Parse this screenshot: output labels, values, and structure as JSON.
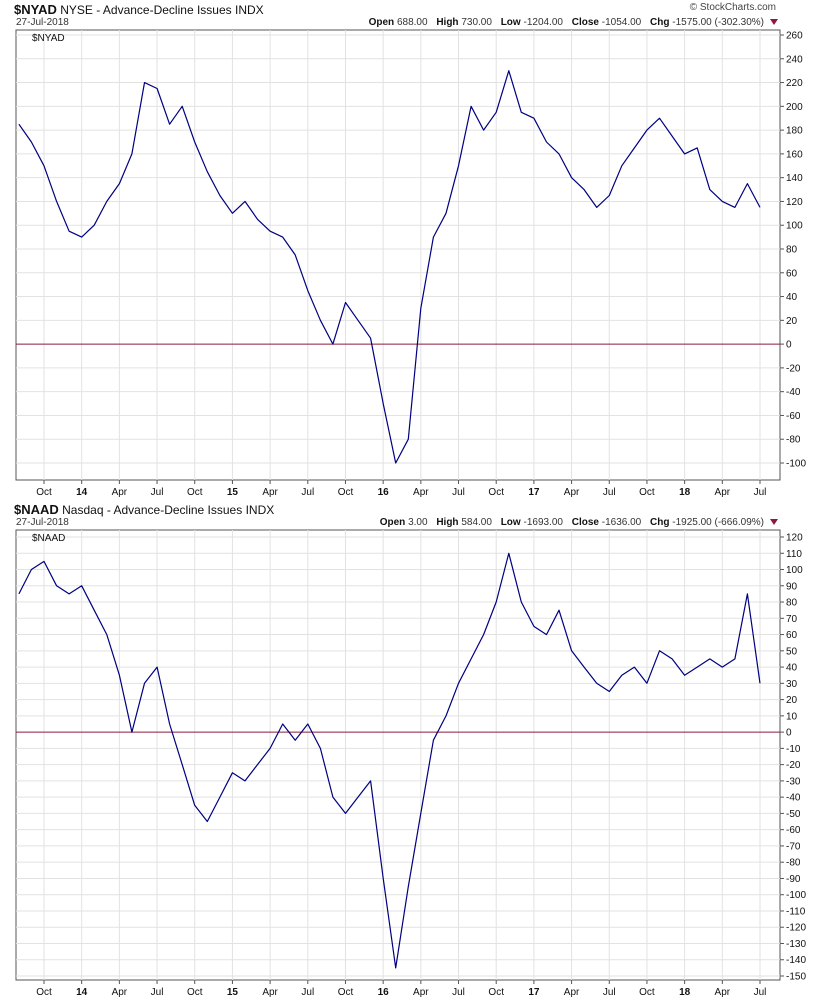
{
  "brand": "© StockCharts.com",
  "x_labels": [
    "Oct",
    "14",
    "Apr",
    "Jul",
    "Oct",
    "15",
    "Apr",
    "Jul",
    "Oct",
    "16",
    "Apr",
    "Jul",
    "Oct",
    "17",
    "Apr",
    "Jul",
    "Oct",
    "18",
    "Apr",
    "Jul"
  ],
  "panels": [
    {
      "symbol": "$NYAD",
      "name": "NYSE - Advance-Decline Issues",
      "exchange": "INDX",
      "date": "27-Jul-2018",
      "open_label": "Open",
      "open": "688.00",
      "high_label": "High",
      "high": "730.00",
      "low_label": "Low",
      "low": "-1204.00",
      "close_label": "Close",
      "close": "-1054.00",
      "chg_label": "Chg",
      "chg": "-1575.00 (-302.30%)",
      "plot_label": "$NYAD"
    },
    {
      "symbol": "$NAAD",
      "name": "Nasdaq - Advance-Decline Issues",
      "exchange": "INDX",
      "date": "27-Jul-2018",
      "open_label": "Open",
      "open": "3.00",
      "high_label": "High",
      "high": "584.00",
      "low_label": "Low",
      "low": "-1693.00",
      "close_label": "Close",
      "close": "-1636.00",
      "chg_label": "Chg",
      "chg": "-1925.00 (-666.09%)",
      "plot_label": "$NAAD"
    }
  ],
  "chart_data": [
    {
      "type": "line",
      "title": "$NYAD",
      "x_range": [
        "2013-08",
        "2018-07-27"
      ],
      "ylim": [
        -110,
        262
      ],
      "yticks": [
        260,
        240,
        220,
        200,
        180,
        160,
        140,
        120,
        100,
        80,
        60,
        40,
        20,
        0,
        -20,
        -40,
        -60,
        -80,
        -100
      ],
      "zero_line": true,
      "line_color": "#000080",
      "zero_line_color": "#8b1a3a",
      "grid": true,
      "x": [
        "2013-08",
        "2013-09",
        "2013-10",
        "2013-11",
        "2013-12",
        "2014-01",
        "2014-02",
        "2014-03",
        "2014-04",
        "2014-05",
        "2014-06",
        "2014-07",
        "2014-08",
        "2014-09",
        "2014-10",
        "2014-11",
        "2014-12",
        "2015-01",
        "2015-02",
        "2015-03",
        "2015-04",
        "2015-05",
        "2015-06",
        "2015-07",
        "2015-08",
        "2015-09",
        "2015-10",
        "2015-11",
        "2015-12",
        "2016-01",
        "2016-02",
        "2016-03",
        "2016-04",
        "2016-05",
        "2016-06",
        "2016-07",
        "2016-08",
        "2016-09",
        "2016-10",
        "2016-11",
        "2016-12",
        "2017-01",
        "2017-02",
        "2017-03",
        "2017-04",
        "2017-05",
        "2017-06",
        "2017-07",
        "2017-08",
        "2017-09",
        "2017-10",
        "2017-11",
        "2017-12",
        "2018-01",
        "2018-02",
        "2018-03",
        "2018-04",
        "2018-05",
        "2018-06",
        "2018-07"
      ],
      "values": [
        185,
        170,
        150,
        120,
        95,
        90,
        100,
        120,
        135,
        160,
        220,
        215,
        185,
        200,
        170,
        145,
        125,
        110,
        120,
        105,
        95,
        90,
        75,
        45,
        20,
        0,
        35,
        20,
        5,
        -50,
        -100,
        -80,
        30,
        90,
        110,
        150,
        200,
        180,
        195,
        230,
        195,
        190,
        170,
        160,
        140,
        130,
        115,
        125,
        150,
        165,
        180,
        190,
        175,
        160,
        165,
        130,
        120,
        115,
        135,
        115
      ]
    },
    {
      "type": "line",
      "title": "$NAAD",
      "x_range": [
        "2013-08",
        "2018-07-27"
      ],
      "ylim": [
        -152,
        122
      ],
      "yticks": [
        120,
        110,
        100,
        90,
        80,
        70,
        60,
        50,
        40,
        30,
        20,
        10,
        0,
        -10,
        -20,
        -30,
        -40,
        -50,
        -60,
        -70,
        -80,
        -90,
        -100,
        -110,
        -120,
        -130,
        -140,
        -150
      ],
      "zero_line": true,
      "line_color": "#000080",
      "zero_line_color": "#8b1a3a",
      "grid": true,
      "x": [
        "2013-08",
        "2013-09",
        "2013-10",
        "2013-11",
        "2013-12",
        "2014-01",
        "2014-02",
        "2014-03",
        "2014-04",
        "2014-05",
        "2014-06",
        "2014-07",
        "2014-08",
        "2014-09",
        "2014-10",
        "2014-11",
        "2014-12",
        "2015-01",
        "2015-02",
        "2015-03",
        "2015-04",
        "2015-05",
        "2015-06",
        "2015-07",
        "2015-08",
        "2015-09",
        "2015-10",
        "2015-11",
        "2015-12",
        "2016-01",
        "2016-02",
        "2016-03",
        "2016-04",
        "2016-05",
        "2016-06",
        "2016-07",
        "2016-08",
        "2016-09",
        "2016-10",
        "2016-11",
        "2016-12",
        "2017-01",
        "2017-02",
        "2017-03",
        "2017-04",
        "2017-05",
        "2017-06",
        "2017-07",
        "2017-08",
        "2017-09",
        "2017-10",
        "2017-11",
        "2017-12",
        "2018-01",
        "2018-02",
        "2018-03",
        "2018-04",
        "2018-05",
        "2018-06",
        "2018-07"
      ],
      "values": [
        85,
        100,
        105,
        90,
        85,
        90,
        75,
        60,
        35,
        0,
        30,
        40,
        5,
        -20,
        -45,
        -55,
        -40,
        -25,
        -30,
        -20,
        -10,
        5,
        -5,
        5,
        -10,
        -40,
        -50,
        -40,
        -30,
        -90,
        -145,
        -95,
        -50,
        -5,
        10,
        30,
        45,
        60,
        80,
        110,
        80,
        65,
        60,
        75,
        50,
        40,
        30,
        25,
        35,
        40,
        30,
        50,
        45,
        35,
        40,
        45,
        40,
        45,
        85,
        30
      ]
    }
  ]
}
